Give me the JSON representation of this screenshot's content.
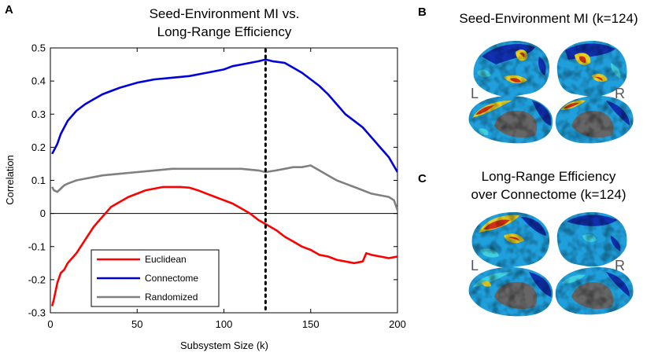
{
  "chart_data": {
    "type": "line",
    "panel": "A",
    "title_lines": [
      "Seed-Environment MI vs.",
      "Long-Range Efficiency"
    ],
    "xlabel": "Subsystem Size (k)",
    "ylabel": "Correlation",
    "xlim": [
      0,
      200
    ],
    "ylim": [
      -0.3,
      0.5
    ],
    "xticks": [
      0,
      50,
      100,
      150,
      200
    ],
    "yticks": [
      -0.3,
      -0.2,
      -0.1,
      0,
      0.1,
      0.2,
      0.3,
      0.4,
      0.5
    ],
    "ytick_labels": [
      "-0.3",
      "-0.2",
      "-0.1",
      "0",
      "0.1",
      "0.2",
      "0.3",
      "0.4",
      "0.5"
    ],
    "xtick_labels": [
      "0",
      "50",
      "100",
      "150",
      "200"
    ],
    "zero_line": 0,
    "marker_k": 124,
    "legend_position": "bottom-left",
    "series": [
      {
        "name": "Euclidean",
        "color": "#ff0000",
        "x": [
          1,
          2,
          4,
          6,
          8,
          10,
          15,
          20,
          25,
          30,
          35,
          40,
          45,
          50,
          55,
          60,
          65,
          70,
          75,
          80,
          85,
          90,
          95,
          100,
          105,
          110,
          115,
          120,
          125,
          130,
          135,
          140,
          145,
          150,
          155,
          160,
          165,
          170,
          175,
          180,
          182,
          185,
          190,
          195,
          200
        ],
        "y": [
          -0.28,
          -0.26,
          -0.21,
          -0.18,
          -0.17,
          -0.15,
          -0.12,
          -0.08,
          -0.04,
          -0.01,
          0.02,
          0.035,
          0.05,
          0.06,
          0.07,
          0.075,
          0.08,
          0.08,
          0.08,
          0.078,
          0.07,
          0.06,
          0.05,
          0.04,
          0.03,
          0.015,
          0.0,
          -0.02,
          -0.035,
          -0.05,
          -0.07,
          -0.085,
          -0.1,
          -0.11,
          -0.125,
          -0.13,
          -0.14,
          -0.145,
          -0.15,
          -0.145,
          -0.12,
          -0.125,
          -0.13,
          -0.135,
          -0.13
        ]
      },
      {
        "name": "Connectome",
        "color": "#0000dd",
        "x": [
          1,
          2,
          4,
          6,
          8,
          10,
          15,
          20,
          25,
          30,
          40,
          50,
          60,
          70,
          80,
          90,
          100,
          105,
          110,
          115,
          120,
          124,
          128,
          135,
          140,
          145,
          150,
          155,
          160,
          165,
          170,
          175,
          180,
          185,
          190,
          195,
          200
        ],
        "y": [
          0.18,
          0.19,
          0.21,
          0.24,
          0.26,
          0.28,
          0.31,
          0.33,
          0.345,
          0.36,
          0.38,
          0.395,
          0.405,
          0.41,
          0.415,
          0.425,
          0.435,
          0.445,
          0.45,
          0.455,
          0.46,
          0.465,
          0.46,
          0.455,
          0.44,
          0.425,
          0.405,
          0.385,
          0.36,
          0.33,
          0.3,
          0.28,
          0.26,
          0.23,
          0.2,
          0.17,
          0.125
        ]
      },
      {
        "name": "Randomized",
        "color": "#808080",
        "x": [
          1,
          2,
          4,
          6,
          8,
          10,
          15,
          20,
          25,
          30,
          40,
          50,
          60,
          70,
          80,
          90,
          100,
          110,
          120,
          124,
          130,
          135,
          140,
          145,
          150,
          155,
          160,
          165,
          170,
          175,
          180,
          185,
          190,
          195,
          198,
          200
        ],
        "y": [
          0.08,
          0.07,
          0.065,
          0.075,
          0.085,
          0.09,
          0.1,
          0.105,
          0.11,
          0.115,
          0.12,
          0.125,
          0.13,
          0.135,
          0.135,
          0.135,
          0.135,
          0.135,
          0.13,
          0.125,
          0.13,
          0.135,
          0.14,
          0.14,
          0.145,
          0.13,
          0.115,
          0.1,
          0.09,
          0.08,
          0.07,
          0.06,
          0.055,
          0.05,
          0.04,
          0.01
        ]
      }
    ]
  },
  "panel_b": {
    "letter": "B",
    "title": "Seed-Environment MI (k=124)",
    "left_label": "L",
    "right_label": "R"
  },
  "panel_c": {
    "letter": "C",
    "title_lines": [
      "Long-Range Efficiency",
      "over Connectome (k=124)"
    ],
    "left_label": "L",
    "right_label": "R"
  },
  "colors": {
    "brain_base": "#1fa0dd",
    "brain_dark": "#1030b0",
    "brain_cyan": "#40d0e0",
    "brain_yellow": "#e8d020",
    "brain_red": "#d03018",
    "medial_wall": "#666666"
  }
}
